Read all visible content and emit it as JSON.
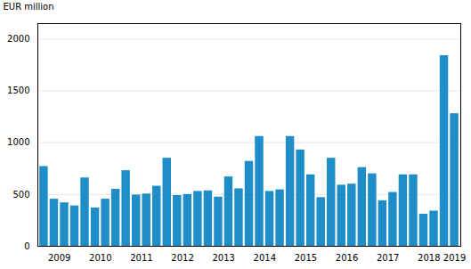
{
  "chart_data": {
    "type": "bar",
    "ylabel": "EUR million",
    "categories": [
      "2009",
      null,
      null,
      null,
      "2010",
      null,
      null,
      null,
      "2011",
      null,
      null,
      null,
      "2012",
      null,
      null,
      null,
      "2013",
      null,
      null,
      null,
      "2014",
      null,
      null,
      null,
      "2015",
      null,
      null,
      null,
      "2016",
      null,
      null,
      null,
      "2017",
      null,
      null,
      null,
      "2018",
      null,
      null,
      null,
      "2019"
    ],
    "values": [
      770,
      455,
      420,
      390,
      660,
      370,
      455,
      550,
      730,
      495,
      505,
      580,
      850,
      490,
      500,
      530,
      535,
      475,
      670,
      555,
      820,
      1060,
      530,
      545,
      1060,
      930,
      690,
      470,
      850,
      590,
      600,
      760,
      700,
      440,
      520,
      690,
      690,
      310,
      340,
      1840,
      1280
    ],
    "color": "#1f8ec8",
    "ylim": [
      0,
      2150
    ],
    "yticks": [
      0,
      500,
      1000,
      1500,
      2000
    ],
    "grid": true
  }
}
